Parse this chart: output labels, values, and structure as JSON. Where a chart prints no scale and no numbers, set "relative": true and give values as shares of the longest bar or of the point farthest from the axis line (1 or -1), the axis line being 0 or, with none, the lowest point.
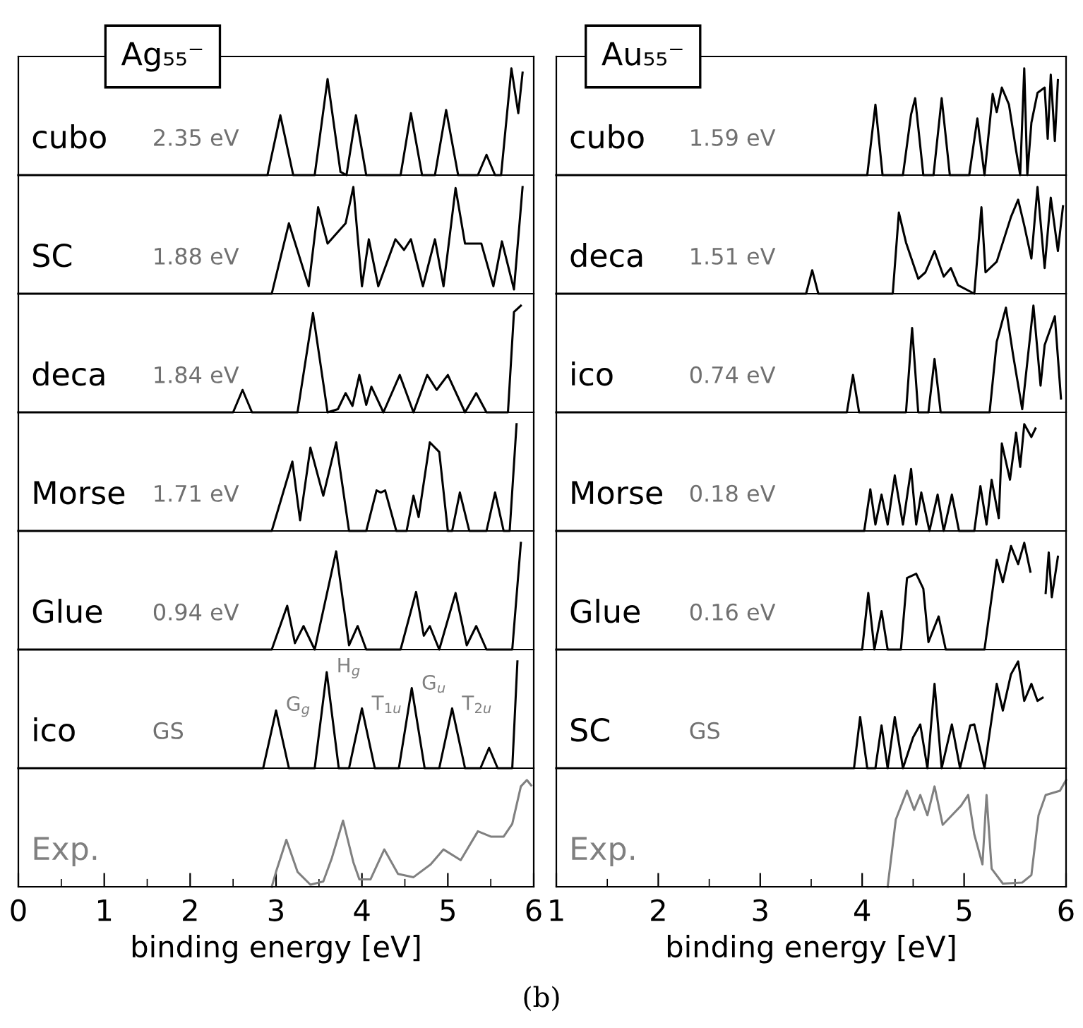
{
  "chart_data": [
    {
      "type": "line",
      "relative": true,
      "title": "Ag₅₅⁻",
      "xlim": [
        0,
        6
      ],
      "tick_labels": false,
      "annotations": [
        "2.35 eV"
      ],
      "series": [
        {
          "name": "cubo",
          "color": "#000000",
          "x": [
            0,
            2.9,
            3.05,
            3.2,
            3.45,
            3.6,
            3.75,
            3.82,
            3.93,
            4.05,
            4.45,
            4.57,
            4.7,
            4.85,
            4.98,
            5.12,
            5.35,
            5.45,
            5.55,
            5.62,
            5.74,
            5.82,
            5.87
          ],
          "values": [
            0,
            0,
            0.56,
            0,
            0,
            0.9,
            0.03,
            0,
            0.56,
            0,
            0,
            0.58,
            0,
            0,
            0.61,
            0,
            0,
            0.19,
            0,
            0,
            1,
            0.58,
            0.96
          ]
        }
      ]
    },
    {
      "type": "line",
      "relative": true,
      "xlim": [
        0,
        6
      ],
      "tick_labels": false,
      "annotations": [
        "1.88 eV"
      ],
      "series": [
        {
          "name": "SC",
          "color": "#000000",
          "x": [
            0,
            2.95,
            3.15,
            3.38,
            3.49,
            3.6,
            3.7,
            3.81,
            3.9,
            4.0,
            4.08,
            4.19,
            4.39,
            4.49,
            4.57,
            4.71,
            4.85,
            4.95,
            5.09,
            5.2,
            5.39,
            5.53,
            5.63,
            5.77,
            5.87
          ],
          "values": [
            0,
            0,
            0.66,
            0.07,
            0.81,
            0.47,
            0.56,
            0.66,
            1,
            0.07,
            0.51,
            0.07,
            0.51,
            0.41,
            0.51,
            0.07,
            0.51,
            0.07,
            0.99,
            0.47,
            0.47,
            0.07,
            0.49,
            0.04,
            1
          ]
        }
      ]
    },
    {
      "type": "line",
      "relative": true,
      "xlim": [
        0,
        6
      ],
      "tick_labels": false,
      "annotations": [
        "1.84 eV"
      ],
      "series": [
        {
          "name": "deca",
          "color": "#000000",
          "x": [
            0,
            2.5,
            2.61,
            2.72,
            3.25,
            3.43,
            3.6,
            3.72,
            3.81,
            3.89,
            3.97,
            4.05,
            4.11,
            4.25,
            4.44,
            4.6,
            4.76,
            4.87,
            5.0,
            5.2,
            5.33,
            5.45,
            5.7,
            5.77,
            5.85
          ],
          "values": [
            0,
            0,
            0.21,
            0,
            0,
            0.93,
            0,
            0.03,
            0.18,
            0.06,
            0.35,
            0.07,
            0.24,
            0,
            0.35,
            0,
            0.35,
            0.21,
            0.35,
            0,
            0.18,
            0,
            0,
            0.94,
            1
          ]
        }
      ]
    },
    {
      "type": "line",
      "relative": true,
      "xlim": [
        0,
        6
      ],
      "tick_labels": false,
      "annotations": [
        "1.71 eV"
      ],
      "series": [
        {
          "name": "Morse",
          "color": "#000000",
          "x": [
            0,
            2.95,
            3.19,
            3.28,
            3.4,
            3.55,
            3.7,
            3.85,
            4.05,
            4.17,
            4.22,
            4.27,
            4.4,
            4.52,
            4.6,
            4.66,
            4.79,
            4.9,
            5.0,
            5.05,
            5.14,
            5.25,
            5.45,
            5.55,
            5.65,
            5.72,
            5.8
          ],
          "values": [
            0,
            0,
            0.65,
            0.1,
            0.78,
            0.33,
            0.83,
            0,
            0,
            0.38,
            0.36,
            0.38,
            0,
            0,
            0.33,
            0.13,
            0.83,
            0.74,
            0,
            0,
            0.36,
            0,
            0,
            0.36,
            0,
            0,
            1
          ]
        }
      ]
    },
    {
      "type": "line",
      "relative": true,
      "xlim": [
        0,
        6
      ],
      "tick_labels": false,
      "annotations": [
        "0.94 eV"
      ],
      "series": [
        {
          "name": "Glue",
          "color": "#000000",
          "x": [
            0,
            2.95,
            3.13,
            3.22,
            3.32,
            3.45,
            3.7,
            3.85,
            3.95,
            4.05,
            4.45,
            4.63,
            4.72,
            4.79,
            4.9,
            5.09,
            5.22,
            5.33,
            5.45,
            5.75,
            5.85
          ],
          "values": [
            0,
            0,
            0.41,
            0.06,
            0.22,
            0,
            0.92,
            0.04,
            0.22,
            0,
            0,
            0.54,
            0.13,
            0.22,
            0,
            0.53,
            0.04,
            0.22,
            0,
            0,
            1
          ]
        }
      ]
    },
    {
      "type": "line",
      "relative": true,
      "xlim": [
        0,
        6
      ],
      "tick_labels": false,
      "annotations": [
        "GS",
        {
          "text": "G$_{g}$",
          "x": 3.0,
          "y": 0.54
        },
        {
          "text": "H$_{g}$",
          "x": 3.59,
          "y": 0.9
        },
        {
          "text": "T$_{1u}$",
          "x": 4.0,
          "y": 0.56
        },
        {
          "text": "G$_{u}$",
          "x": 4.58,
          "y": 0.75
        },
        {
          "text": "T$_{2u}$",
          "x": 5.05,
          "y": 0.56
        }
      ],
      "series": [
        {
          "name": "ico",
          "color": "#000000",
          "x": [
            0,
            2.85,
            3.0,
            3.15,
            3.45,
            3.59,
            3.73,
            3.85,
            4.0,
            4.15,
            4.43,
            4.58,
            4.73,
            4.9,
            5.05,
            5.2,
            5.38,
            5.48,
            5.58,
            5.75,
            5.81
          ],
          "values": [
            0,
            0,
            0.54,
            0,
            0,
            0.9,
            0,
            0,
            0.56,
            0,
            0,
            0.75,
            0,
            0,
            0.56,
            0,
            0,
            0.19,
            0,
            0,
            1
          ]
        }
      ]
    },
    {
      "type": "line",
      "relative": true,
      "xlim": [
        0,
        6
      ],
      "tick_labels": "x",
      "xlabel": "binding energy [eV]",
      "xticks": [
        0,
        {
          "value": 0.5,
          "label": null
        },
        1,
        {
          "value": 1.5,
          "label": null
        },
        2,
        {
          "value": 2.5,
          "label": null
        },
        3,
        {
          "value": 3.5,
          "label": null
        },
        4,
        {
          "value": 4.5,
          "label": null
        },
        5,
        {
          "value": 5.5,
          "label": null
        },
        6
      ],
      "series": [
        {
          "name": "Exp.",
          "color": "#808080",
          "x": [
            2.95,
            3.0,
            3.12,
            3.25,
            3.4,
            3.55,
            3.65,
            3.78,
            3.9,
            3.97,
            4.1,
            4.26,
            4.42,
            4.6,
            4.8,
            4.95,
            5.15,
            5.35,
            5.5,
            5.65,
            5.75,
            5.85,
            5.92,
            5.97
          ],
          "values": [
            0,
            0.14,
            0.44,
            0.14,
            0.02,
            0.05,
            0.27,
            0.62,
            0.23,
            0.07,
            0.07,
            0.35,
            0.12,
            0.09,
            0.21,
            0.35,
            0.25,
            0.52,
            0.47,
            0.47,
            0.59,
            0.94,
            1,
            0.95
          ]
        }
      ]
    },
    {
      "type": "line",
      "relative": true,
      "title": "Au₅₅⁻",
      "xlim": [
        1,
        6
      ],
      "tick_labels": false,
      "annotations": [
        "1.59 eV"
      ],
      "series": [
        {
          "name": "cubo",
          "color": "#000000",
          "x": [
            1,
            4.05,
            4.13,
            4.2,
            4.4,
            4.48,
            4.52,
            4.6,
            4.7,
            4.78,
            4.86,
            5.05,
            5.13,
            5.2,
            5.28,
            5.32,
            5.37,
            5.44,
            5.51,
            5.55,
            5.59,
            5.62,
            5.66,
            5.72,
            5.79,
            5.82,
            5.85,
            5.89,
            5.92
          ],
          "values": [
            0,
            0,
            0.66,
            0,
            0,
            0.57,
            0.72,
            0,
            0,
            0.72,
            0,
            0,
            0.53,
            0,
            0.76,
            0.59,
            0.82,
            0.66,
            0.23,
            0,
            1,
            0,
            0.49,
            0.77,
            0.82,
            0.34,
            0.94,
            0.32,
            0.89
          ]
        }
      ]
    },
    {
      "type": "line",
      "relative": true,
      "xlim": [
        1,
        6
      ],
      "tick_labels": false,
      "annotations": [
        "1.51 eV"
      ],
      "series": [
        {
          "name": "deca",
          "color": "#000000",
          "x": [
            1,
            3.45,
            3.51,
            3.57,
            4.3,
            4.36,
            4.43,
            4.55,
            4.62,
            4.71,
            4.8,
            4.87,
            4.94,
            5.1,
            5.17,
            5.21,
            5.32,
            5.46,
            5.53,
            5.59,
            5.66,
            5.72,
            5.79,
            5.85,
            5.92,
            5.97
          ],
          "values": [
            0,
            0,
            0.22,
            0,
            0,
            0.76,
            0.48,
            0.14,
            0.2,
            0.4,
            0.16,
            0.24,
            0.08,
            0,
            0.81,
            0.2,
            0.3,
            0.72,
            0.88,
            0.64,
            0.33,
            1,
            0.24,
            0.9,
            0.4,
            0.82
          ]
        }
      ]
    },
    {
      "type": "line",
      "relative": true,
      "xlim": [
        1,
        6
      ],
      "tick_labels": false,
      "annotations": [
        "0.74 eV"
      ],
      "series": [
        {
          "name": "ico",
          "color": "#000000",
          "x": [
            1,
            3.85,
            3.91,
            3.97,
            4.43,
            4.49,
            4.55,
            4.65,
            4.71,
            4.77,
            5.25,
            5.32,
            5.41,
            5.48,
            5.57,
            5.68,
            5.75,
            5.79,
            5.89,
            5.95
          ],
          "values": [
            0,
            0,
            0.35,
            0,
            0,
            0.79,
            0,
            0,
            0.5,
            0,
            0,
            0.66,
            0.98,
            0.54,
            0.03,
            1,
            0.25,
            0.63,
            0.9,
            0.13
          ]
        }
      ]
    },
    {
      "type": "line",
      "relative": true,
      "xlim": [
        1,
        6
      ],
      "tick_labels": false,
      "annotations": [
        "0.18 eV"
      ],
      "series": [
        {
          "name": "Morse",
          "color": "#000000",
          "x": [
            1,
            4.02,
            4.08,
            4.13,
            4.19,
            4.25,
            4.32,
            4.4,
            4.48,
            4.53,
            4.58,
            4.66,
            4.74,
            4.8,
            4.88,
            4.95,
            5.1,
            5.16,
            5.22,
            5.27,
            5.34,
            5.37,
            5.45,
            5.51,
            5.55,
            5.59,
            5.66,
            5.7
          ],
          "values": [
            0,
            0,
            0.39,
            0.06,
            0.34,
            0.06,
            0.52,
            0.06,
            0.58,
            0.06,
            0.36,
            0,
            0.34,
            0,
            0.34,
            0,
            0,
            0.42,
            0.06,
            0.48,
            0.12,
            0.82,
            0.48,
            0.92,
            0.6,
            1,
            0.88,
            0.96
          ]
        }
      ]
    },
    {
      "type": "line",
      "relative": true,
      "xlim": [
        1,
        6
      ],
      "tick_labels": false,
      "annotations": [
        "0.16 eV"
      ],
      "series": [
        {
          "name": "Glue",
          "color": "#000000",
          "x": [
            1,
            4.0,
            4.06,
            4.12,
            4.19,
            4.25,
            4.38,
            4.44,
            4.53,
            4.6,
            4.65,
            4.75,
            4.82,
            5.2,
            5.32,
            5.38,
            5.46,
            5.53,
            5.59,
            5.65,
            5.75,
            5.8,
            5.83,
            5.86,
            5.92
          ],
          "values": [
            0,
            0,
            0.53,
            0,
            0.36,
            0,
            0,
            0.67,
            0.71,
            0.57,
            0.07,
            0.31,
            0,
            0,
            0.84,
            0.63,
            0.97,
            0.8,
            1,
            0.73,
            null,
            0.53,
            0.91,
            0.49,
            0.87
          ]
        }
      ]
    },
    {
      "type": "line",
      "relative": true,
      "xlim": [
        1,
        6
      ],
      "tick_labels": false,
      "annotations": [
        "GS"
      ],
      "series": [
        {
          "name": "SC",
          "color": "#000000",
          "x": [
            1,
            3.92,
            3.98,
            4.05,
            4.13,
            4.19,
            4.25,
            4.32,
            4.4,
            4.5,
            4.57,
            4.64,
            4.71,
            4.78,
            4.88,
            4.96,
            5.06,
            5.1,
            5.2,
            5.32,
            5.38,
            5.46,
            5.53,
            5.59,
            5.66,
            5.72,
            5.77
          ],
          "values": [
            0,
            0,
            0.48,
            0,
            0,
            0.4,
            0,
            0.48,
            0,
            0.29,
            0.41,
            0,
            0.79,
            0,
            0.41,
            0,
            0.4,
            0.41,
            0,
            0.79,
            0.54,
            0.88,
            1,
            0.63,
            0.79,
            0.63,
            0.66
          ]
        }
      ]
    },
    {
      "type": "line",
      "relative": true,
      "xlim": [
        1,
        6
      ],
      "tick_labels": "x",
      "xlabel": "binding energy [eV]",
      "annotations": [
        "(b)"
      ],
      "xticks": [
        1,
        {
          "value": 1.5,
          "label": null
        },
        2,
        {
          "value": 2.5,
          "label": null
        },
        3,
        {
          "value": 3.5,
          "label": null
        },
        4,
        {
          "value": 4.5,
          "label": null
        },
        5,
        {
          "value": 5.5,
          "label": null
        },
        6
      ],
      "series": [
        {
          "name": "Exp.",
          "color": "#808080",
          "x": [
            4.25,
            4.33,
            4.44,
            4.51,
            4.57,
            4.64,
            4.71,
            4.79,
            4.88,
            4.97,
            5.04,
            5.1,
            5.18,
            5.22,
            5.27,
            5.38,
            5.57,
            5.66,
            5.73,
            5.8,
            5.94,
            6.0
          ],
          "values": [
            0,
            0.63,
            0.9,
            0.72,
            0.86,
            0.67,
            0.94,
            0.58,
            0.67,
            0.76,
            0.86,
            0.49,
            0.21,
            0.86,
            0.17,
            0.03,
            0.04,
            0.11,
            0.67,
            0.86,
            0.9,
            1
          ]
        }
      ]
    }
  ]
}
